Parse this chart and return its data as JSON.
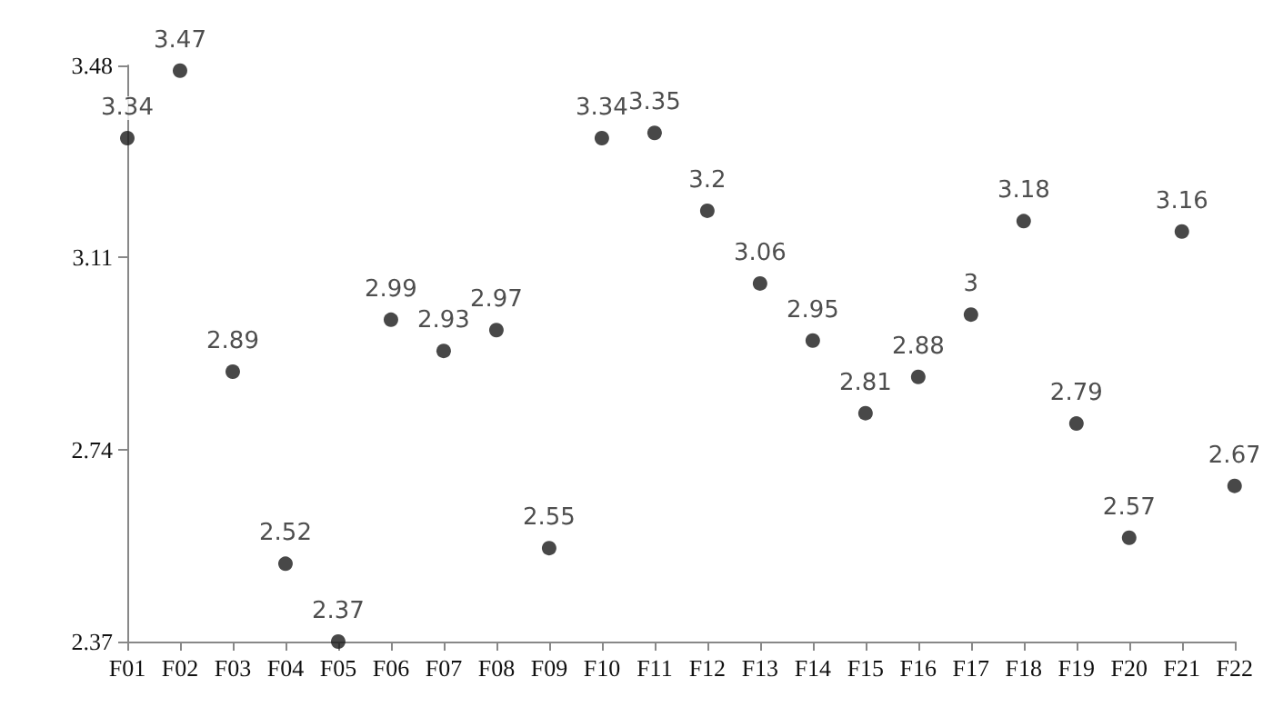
{
  "chart_data": {
    "type": "scatter",
    "categories": [
      "F01",
      "F02",
      "F03",
      "F04",
      "F05",
      "F06",
      "F07",
      "F08",
      "F09",
      "F10",
      "F11",
      "F12",
      "F13",
      "F14",
      "F15",
      "F16",
      "F17",
      "F18",
      "F19",
      "F20",
      "F21",
      "F22"
    ],
    "series": [
      {
        "color": "#1a1a1a",
        "values": [
          3.34,
          3.47,
          2.89,
          2.52,
          2.37,
          2.99,
          2.93,
          2.97,
          2.55,
          3.34,
          3.35,
          3.2,
          3.06,
          2.95,
          2.81,
          2.88,
          3,
          3.18,
          2.79,
          2.57,
          3.16,
          2.67
        ]
      }
    ],
    "ylim": [
      2.37,
      3.48
    ],
    "yticks": [
      2.37,
      2.74,
      3.11,
      3.48
    ],
    "data_labels": true,
    "grid": false,
    "marker": "circle"
  }
}
